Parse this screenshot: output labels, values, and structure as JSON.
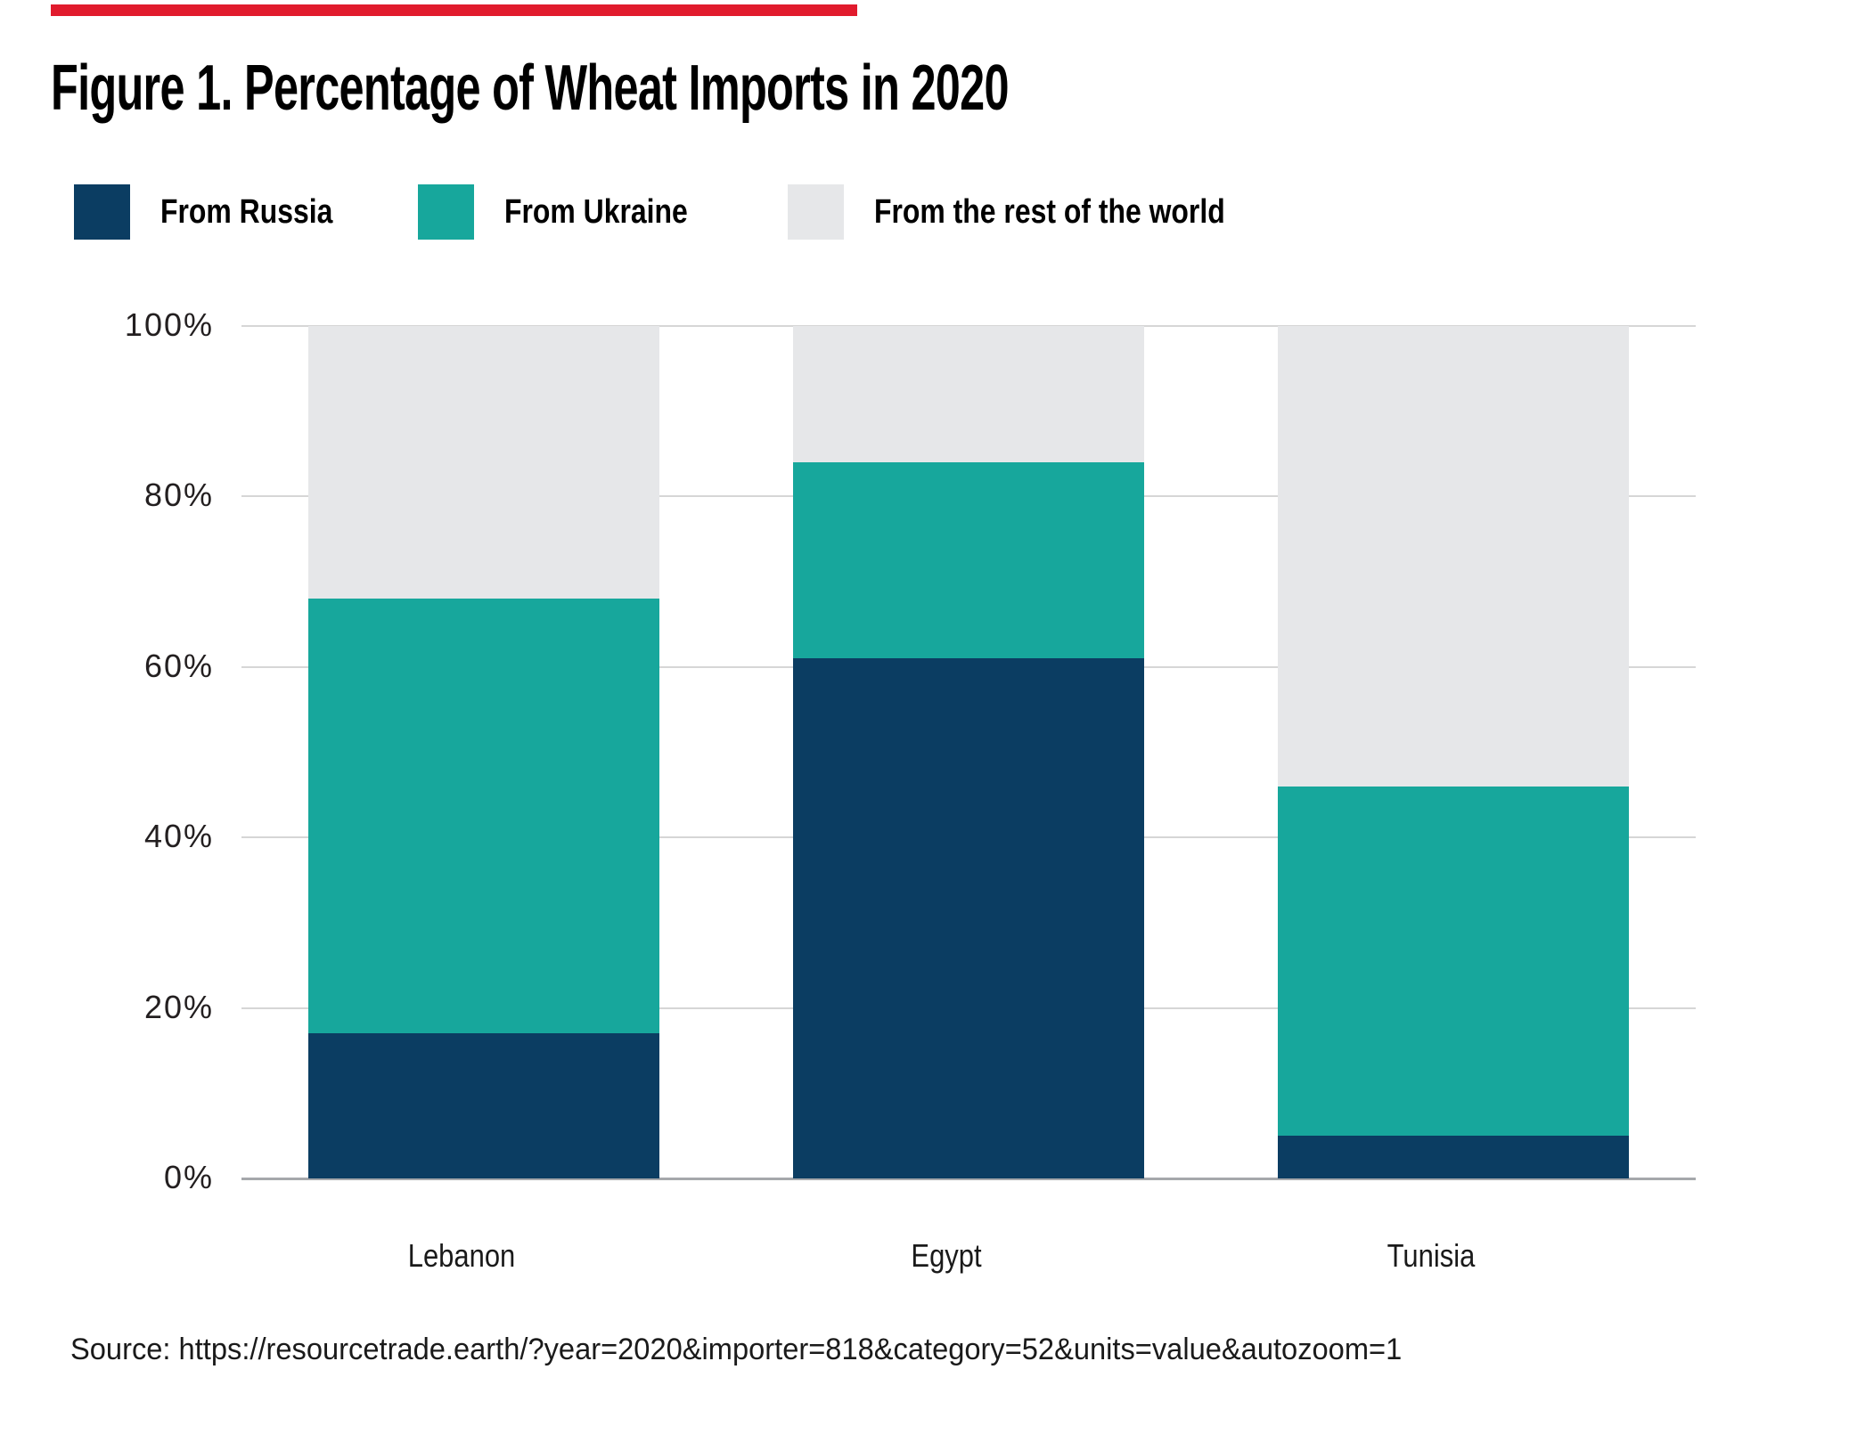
{
  "page": {
    "accent_bar_color": "#e11b2d",
    "background": "#ffffff"
  },
  "title": "Figure 1. Percentage of Wheat Imports in 2020",
  "legend": [
    {
      "key": "russia",
      "label": "From Russia",
      "color": "#0b3d62"
    },
    {
      "key": "ukraine",
      "label": "From Ukraine",
      "color": "#17a79c"
    },
    {
      "key": "rest-of-world",
      "label": "From the rest of the world",
      "color": "#e6e7e9"
    }
  ],
  "chart_data": {
    "type": "bar",
    "stacked": true,
    "title": "Figure 1. Percentage of Wheat Imports in 2020",
    "categories": [
      "Lebanon",
      "Egypt",
      "Tunisia"
    ],
    "series": [
      {
        "name": "From Russia",
        "key": "russia",
        "color": "#0b3d62",
        "values": [
          17,
          61,
          5
        ]
      },
      {
        "name": "From Ukraine",
        "key": "ukraine",
        "color": "#17a79c",
        "values": [
          51,
          23,
          41
        ]
      },
      {
        "name": "From the rest of the world",
        "key": "rest-of-world",
        "color": "#e6e7e9",
        "values": [
          32,
          16,
          54
        ]
      }
    ],
    "y_ticks": [
      "100%",
      "80%",
      "60%",
      "40%",
      "20%",
      "0%"
    ],
    "ylim": [
      0,
      100
    ],
    "grid": true,
    "grid_color": "#d6d6d6",
    "axis_line_color": "#a6a8ab",
    "legend_position": "top",
    "xlabel": "",
    "ylabel": ""
  },
  "source": "Source: https://resourcetrade.earth/?year=2020&importer=818&category=52&units=value&autozoom=1"
}
